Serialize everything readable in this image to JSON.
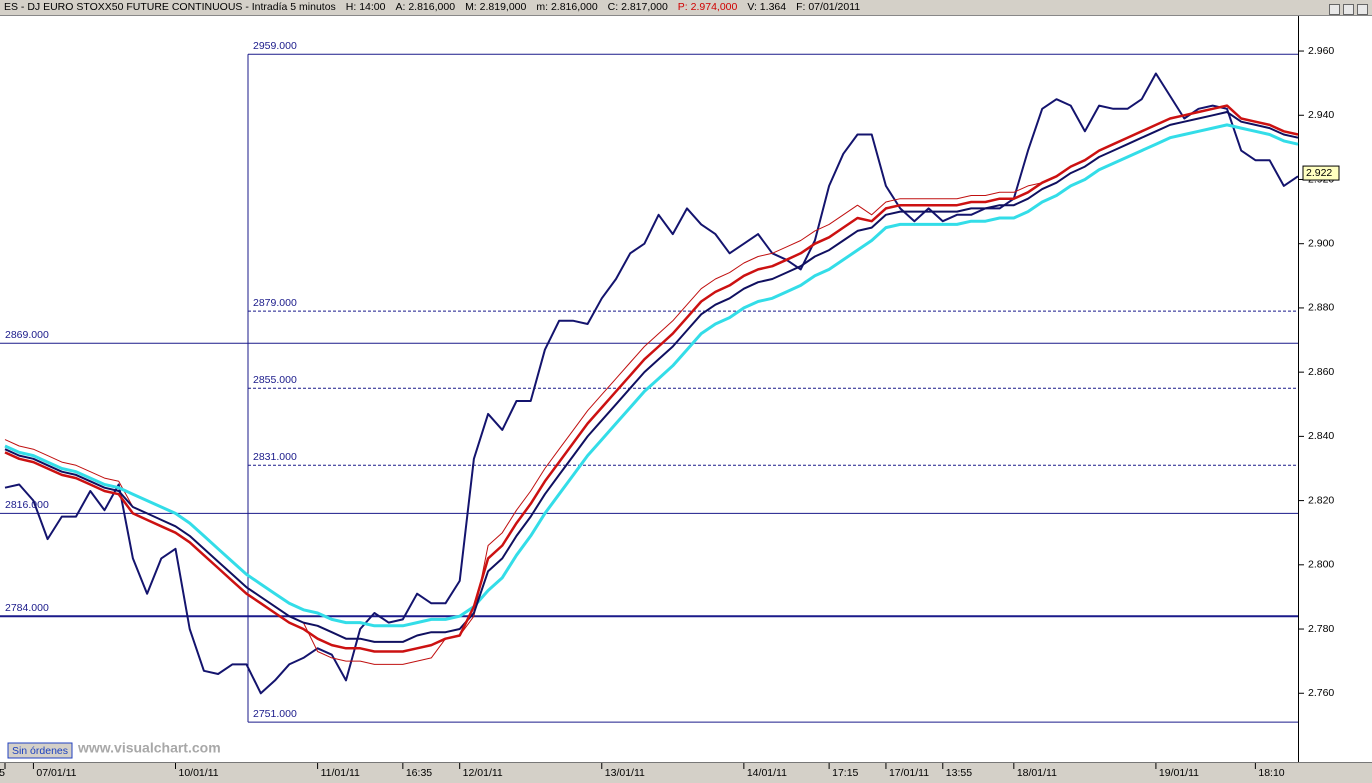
{
  "header": {
    "items": [
      {
        "text": "ES - DJ EURO STOXX50 FUTURE CONTINUOUS - Intradía 5 minutos",
        "color": "#000000"
      },
      {
        "text": "H: 14:00",
        "color": "#000000"
      },
      {
        "text": "A: 2.816,000",
        "color": "#000000"
      },
      {
        "text": "M: 2.819,000",
        "color": "#000000"
      },
      {
        "text": "m: 2.816,000",
        "color": "#000000"
      },
      {
        "text": "C: 2.817,000",
        "color": "#000000"
      },
      {
        "text": "P: 2.974,000",
        "color": "#d00000"
      },
      {
        "text": "V: 1.364",
        "color": "#000000"
      },
      {
        "text": "F: 07/01/2011",
        "color": "#000000"
      }
    ]
  },
  "footer": {
    "status": "Sin órdenes",
    "watermark": "www.visualchart.com"
  },
  "chart_data": {
    "type": "line",
    "categories": [
      "5",
      null,
      "07/01/11",
      null,
      null,
      null,
      null,
      null,
      null,
      null,
      null,
      null,
      "10/01/11",
      null,
      null,
      null,
      null,
      null,
      null,
      null,
      null,
      null,
      "11/01/11",
      null,
      null,
      null,
      null,
      null,
      "16:35",
      null,
      null,
      null,
      "12/01/11",
      null,
      null,
      null,
      null,
      null,
      null,
      null,
      null,
      null,
      "13/01/11",
      null,
      null,
      null,
      null,
      null,
      null,
      null,
      null,
      null,
      "14/01/11",
      null,
      null,
      null,
      null,
      null,
      "17:15",
      null,
      null,
      null,
      "17/01/11",
      null,
      null,
      null,
      "13:55",
      null,
      null,
      null,
      null,
      "18/01/11",
      null,
      null,
      null,
      null,
      null,
      null,
      null,
      null,
      null,
      "19/01/11",
      null,
      null,
      null,
      null,
      null,
      null,
      "18:10",
      null,
      null,
      null
    ],
    "series": [
      {
        "name": "price",
        "color": "#14146e",
        "width": 2,
        "values": [
          2.824,
          2.825,
          2.82,
          2.808,
          2.815,
          2.815,
          2.823,
          2.817,
          2.825,
          2.802,
          2.791,
          2.802,
          2.805,
          2.78,
          2.767,
          2.766,
          2.769,
          2.769,
          2.76,
          2.764,
          2.769,
          2.771,
          2.774,
          2.772,
          2.764,
          2.78,
          2.785,
          2.782,
          2.783,
          2.791,
          2.788,
          2.788,
          2.795,
          2.833,
          2.847,
          2.842,
          2.851,
          2.851,
          2.867,
          2.876,
          2.876,
          2.875,
          2.883,
          2.889,
          2.897,
          2.9,
          2.909,
          2.903,
          2.911,
          2.906,
          2.903,
          2.897,
          2.9,
          2.903,
          2.897,
          2.895,
          2.892,
          2.901,
          2.918,
          2.928,
          2.934,
          2.934,
          2.918,
          2.911,
          2.907,
          2.911,
          2.907,
          2.909,
          2.909,
          2.911,
          2.911,
          2.914,
          2.929,
          2.942,
          2.945,
          2.943,
          2.935,
          2.943,
          2.942,
          2.942,
          2.945,
          2.953,
          2.946,
          2.939,
          2.942,
          2.943,
          2.942,
          2.929,
          2.926,
          2.926,
          2.918,
          2.921
        ]
      },
      {
        "name": "ma-thin-red",
        "color": "#c01010",
        "width": 1,
        "values": [
          2.839,
          2.837,
          2.836,
          2.834,
          2.832,
          2.831,
          2.829,
          2.827,
          2.826,
          2.818,
          2.816,
          2.814,
          2.812,
          2.809,
          2.805,
          2.801,
          2.797,
          2.793,
          2.79,
          2.787,
          2.784,
          2.782,
          2.773,
          2.771,
          2.77,
          2.77,
          2.769,
          2.769,
          2.769,
          2.77,
          2.771,
          2.777,
          2.778,
          2.784,
          2.806,
          2.81,
          2.817,
          2.823,
          2.83,
          2.836,
          2.842,
          2.848,
          2.853,
          2.858,
          2.863,
          2.868,
          2.872,
          2.876,
          2.881,
          2.886,
          2.889,
          2.891,
          2.894,
          2.896,
          2.897,
          2.899,
          2.901,
          2.904,
          2.906,
          2.909,
          2.912,
          2.909,
          2.913,
          2.914,
          2.914,
          2.914,
          2.914,
          2.914,
          2.915,
          2.915,
          2.916,
          2.916,
          2.918,
          2.919,
          2.921,
          2.924,
          2.926,
          2.929,
          2.931,
          2.933,
          2.935,
          2.937,
          2.939,
          2.94,
          2.941,
          2.942,
          2.943,
          2.939,
          2.938,
          2.937,
          2.935,
          2.934
        ]
      },
      {
        "name": "ma-cyan",
        "color": "#33dde8",
        "width": 3,
        "values": [
          2.837,
          2.835,
          2.834,
          2.832,
          2.83,
          2.829,
          2.827,
          2.825,
          2.824,
          2.822,
          2.82,
          2.818,
          2.816,
          2.813,
          2.809,
          2.805,
          2.801,
          2.797,
          2.794,
          2.791,
          2.788,
          2.786,
          2.785,
          2.783,
          2.782,
          2.782,
          2.781,
          2.781,
          2.781,
          2.782,
          2.783,
          2.783,
          2.784,
          2.787,
          2.792,
          2.796,
          2.803,
          2.809,
          2.816,
          2.822,
          2.828,
          2.834,
          2.839,
          2.844,
          2.849,
          2.854,
          2.858,
          2.862,
          2.867,
          2.872,
          2.875,
          2.877,
          2.88,
          2.882,
          2.883,
          2.885,
          2.887,
          2.89,
          2.892,
          2.895,
          2.898,
          2.901,
          2.905,
          2.906,
          2.906,
          2.906,
          2.906,
          2.906,
          2.907,
          2.907,
          2.908,
          2.908,
          2.91,
          2.913,
          2.915,
          2.918,
          2.92,
          2.923,
          2.925,
          2.927,
          2.929,
          2.931,
          2.933,
          2.934,
          2.935,
          2.936,
          2.937,
          2.936,
          2.935,
          2.934,
          2.932,
          2.931
        ]
      },
      {
        "name": "ma-navy",
        "color": "#101060",
        "width": 2,
        "values": [
          2.836,
          2.834,
          2.833,
          2.831,
          2.829,
          2.828,
          2.826,
          2.824,
          2.823,
          2.818,
          2.816,
          2.814,
          2.812,
          2.809,
          2.805,
          2.801,
          2.797,
          2.793,
          2.79,
          2.787,
          2.784,
          2.782,
          2.781,
          2.779,
          2.777,
          2.777,
          2.776,
          2.776,
          2.776,
          2.778,
          2.779,
          2.779,
          2.78,
          2.785,
          2.798,
          2.802,
          2.809,
          2.815,
          2.822,
          2.828,
          2.834,
          2.84,
          2.845,
          2.85,
          2.855,
          2.86,
          2.864,
          2.868,
          2.873,
          2.878,
          2.881,
          2.883,
          2.886,
          2.888,
          2.889,
          2.891,
          2.893,
          2.896,
          2.898,
          2.901,
          2.904,
          2.905,
          2.909,
          2.91,
          2.91,
          2.91,
          2.91,
          2.91,
          2.911,
          2.911,
          2.912,
          2.912,
          2.914,
          2.917,
          2.919,
          2.922,
          2.924,
          2.927,
          2.929,
          2.931,
          2.933,
          2.935,
          2.937,
          2.938,
          2.939,
          2.94,
          2.941,
          2.938,
          2.937,
          2.936,
          2.934,
          2.933
        ]
      },
      {
        "name": "ma-red",
        "color": "#cc1111",
        "width": 2.5,
        "values": [
          2.835,
          2.833,
          2.832,
          2.83,
          2.828,
          2.827,
          2.825,
          2.823,
          2.822,
          2.816,
          2.814,
          2.812,
          2.81,
          2.807,
          2.803,
          2.799,
          2.795,
          2.791,
          2.788,
          2.785,
          2.782,
          2.78,
          2.777,
          2.775,
          2.774,
          2.774,
          2.773,
          2.773,
          2.773,
          2.774,
          2.775,
          2.777,
          2.778,
          2.787,
          2.802,
          2.806,
          2.813,
          2.819,
          2.826,
          2.832,
          2.838,
          2.844,
          2.849,
          2.854,
          2.859,
          2.864,
          2.868,
          2.872,
          2.877,
          2.882,
          2.885,
          2.887,
          2.89,
          2.892,
          2.893,
          2.895,
          2.897,
          2.9,
          2.902,
          2.905,
          2.908,
          2.907,
          2.911,
          2.912,
          2.912,
          2.912,
          2.912,
          2.912,
          2.913,
          2.913,
          2.914,
          2.914,
          2.916,
          2.919,
          2.921,
          2.924,
          2.926,
          2.929,
          2.931,
          2.933,
          2.935,
          2.937,
          2.939,
          2.94,
          2.941,
          2.942,
          2.943,
          2.939,
          2.938,
          2.937,
          2.935,
          2.934
        ]
      }
    ],
    "ylim": [
      2.747,
      2.9706
    ],
    "yticks": [
      {
        "value": 2.76,
        "label": "2.760"
      },
      {
        "value": 2.78,
        "label": "2.780"
      },
      {
        "value": 2.8,
        "label": "2.800"
      },
      {
        "value": 2.82,
        "label": "2.820"
      },
      {
        "value": 2.84,
        "label": "2.840"
      },
      {
        "value": 2.86,
        "label": "2.860"
      },
      {
        "value": 2.88,
        "label": "2.880"
      },
      {
        "value": 2.9,
        "label": "2.900"
      },
      {
        "value": 2.92,
        "label": "2.920"
      },
      {
        "value": 2.94,
        "label": "2.940"
      },
      {
        "value": 2.96,
        "label": "2.960"
      }
    ],
    "levels": [
      {
        "value": 2.959,
        "label": "2959.000",
        "style": "solid",
        "extent": "partial"
      },
      {
        "value": 2.879,
        "label": "2879.000",
        "style": "dashed",
        "extent": "partial"
      },
      {
        "value": 2.869,
        "label": "2869.000",
        "style": "solid",
        "extent": "full"
      },
      {
        "value": 2.855,
        "label": "2855.000",
        "style": "dashed",
        "extent": "partial"
      },
      {
        "value": 2.831,
        "label": "2831.000",
        "style": "dashed",
        "extent": "partial"
      },
      {
        "value": 2.816,
        "label": "2816.000",
        "style": "solid",
        "extent": "full"
      },
      {
        "value": 2.784,
        "label": "2784.000",
        "style": "thick",
        "extent": "full"
      },
      {
        "value": 2.751,
        "label": "2751.000",
        "style": "solid",
        "extent": "partial"
      }
    ],
    "level_color": "#1a1a8a",
    "last_price": {
      "value": 2.922,
      "label": "2.922"
    }
  }
}
